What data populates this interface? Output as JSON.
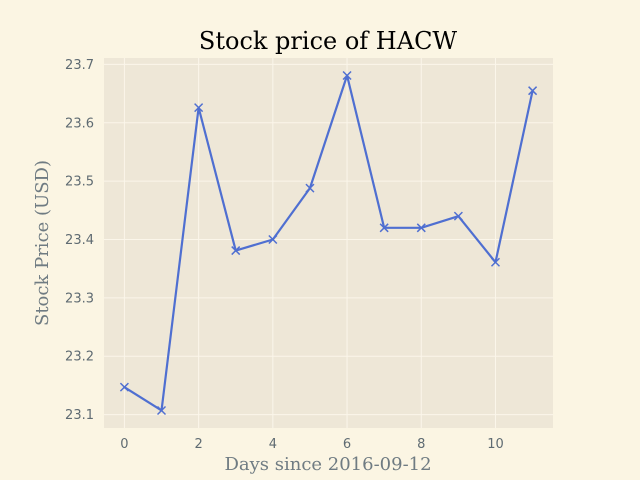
{
  "chart_data": {
    "type": "line",
    "title": "Stock price of HACW",
    "xlabel": "Days since 2016-09-12",
    "ylabel": "Stock Price (USD)",
    "x": [
      0,
      1,
      2,
      3,
      4,
      5,
      6,
      7,
      8,
      9,
      10,
      11
    ],
    "series": [
      {
        "values": [
          23.147,
          23.107,
          23.626,
          23.381,
          23.4,
          23.488,
          23.681,
          23.42,
          23.42,
          23.44,
          23.361,
          23.655
        ]
      }
    ],
    "xlim": [
      -0.55,
      11.55
    ],
    "ylim": [
      23.077,
      23.711
    ],
    "xticks": [
      "0",
      "2",
      "4",
      "6",
      "8",
      "10"
    ],
    "xtick_values": [
      0,
      2,
      4,
      6,
      8,
      10
    ],
    "yticks": [
      "23.1",
      "23.2",
      "23.3",
      "23.4",
      "23.5",
      "23.6",
      "23.7"
    ],
    "ytick_values": [
      23.1,
      23.2,
      23.3,
      23.4,
      23.5,
      23.6,
      23.7
    ],
    "grid": true,
    "marker": "x",
    "colors": {
      "page_background": "#fbf5e3",
      "plot_background": "#eee7d7",
      "grid": "#fbf6ea",
      "line": "#4f6fd1",
      "tick_text": "#5f6b72",
      "axis_text": "#6f7b82"
    }
  }
}
